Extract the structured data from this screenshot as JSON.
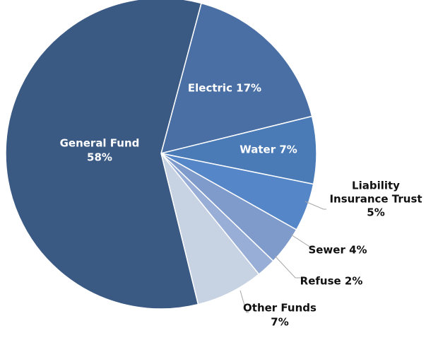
{
  "chart_data": {
    "type": "pie",
    "title": "",
    "slices": [
      {
        "name": "Electric",
        "value": 17,
        "color": "#4a6fa5",
        "label_lines": [
          "Electric 17%"
        ],
        "label_inside": true
      },
      {
        "name": "Water",
        "value": 7,
        "color": "#4a7bb7",
        "label_lines": [
          "Water 7%"
        ],
        "label_inside": true
      },
      {
        "name": "Liability Insurance Trust",
        "value": 5,
        "color": "#5586c8",
        "label_lines": [
          "Liability",
          "Insurance Trust",
          "5%"
        ],
        "label_inside": false
      },
      {
        "name": "Sewer",
        "value": 4,
        "color": "#7e9bcb",
        "label_lines": [
          "Sewer 4%"
        ],
        "label_inside": false
      },
      {
        "name": "Refuse",
        "value": 2,
        "color": "#98aed6",
        "label_lines": [
          "Refuse 2%"
        ],
        "label_inside": false
      },
      {
        "name": "Other Funds",
        "value": 7,
        "color": "#c7d2e3",
        "label_lines": [
          "Other Funds",
          "7%"
        ],
        "label_inside": false
      },
      {
        "name": "General Fund",
        "value": 58,
        "color": "#3a5a84",
        "label_lines": [
          "General Fund",
          "58%"
        ],
        "label_inside": true
      }
    ],
    "inside_label_color": "#ffffff",
    "outside_label_color": "#111111",
    "leader_line_color": "#a6a6a6",
    "separator_color": "#ffffff"
  }
}
